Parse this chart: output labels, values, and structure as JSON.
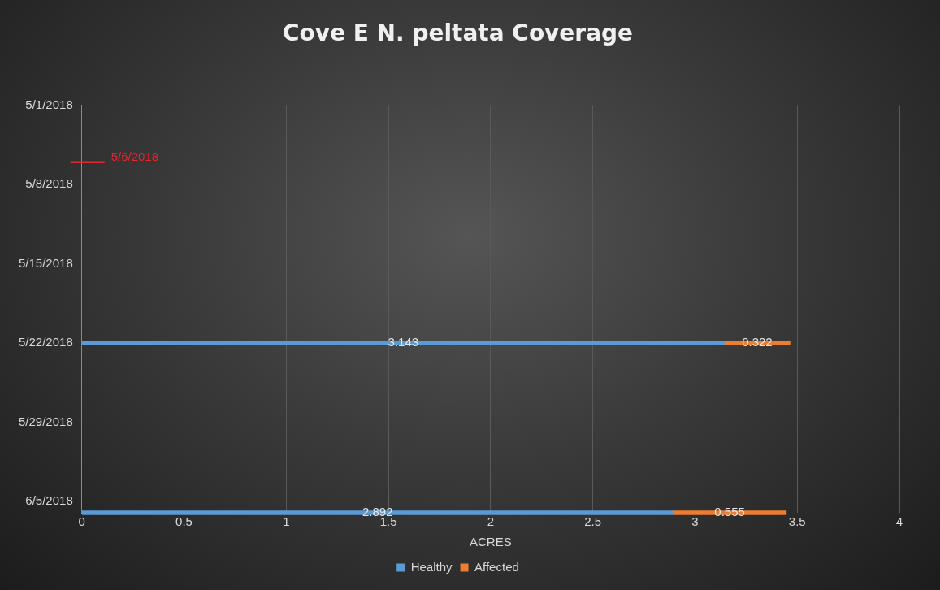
{
  "chart_data": {
    "type": "bar",
    "orientation": "horizontal",
    "stacked": true,
    "title": "Cove E N. peltata Coverage",
    "xlabel": "ACRES",
    "x": [
      "2018-05-22",
      "2018-06-06"
    ],
    "series": [
      {
        "name": "Healthy",
        "color": "#5b9bd5",
        "values": [
          3.143,
          2.892
        ]
      },
      {
        "name": "Affected",
        "color": "#ed7d31",
        "values": [
          0.322,
          0.555
        ]
      }
    ],
    "xlim": [
      0,
      4
    ],
    "xticks": [
      0,
      0.5,
      1,
      1.5,
      2,
      2.5,
      3,
      3.5,
      4
    ],
    "ylim": [
      "2018-06-06",
      "2018-05-01"
    ],
    "yticks": [
      {
        "value": "2018-05-01",
        "label": "5/1/2018"
      },
      {
        "value": "2018-05-08",
        "label": "5/8/2018"
      },
      {
        "value": "2018-05-15",
        "label": "5/15/2018"
      },
      {
        "value": "2018-05-22",
        "label": "5/22/2018"
      },
      {
        "value": "2018-05-29",
        "label": "5/29/2018"
      },
      {
        "value": "2018-06-05",
        "label": "6/5/2018"
      }
    ],
    "ref_lines": [
      {
        "axis": "y",
        "value": "2018-05-06",
        "label": "5/6/2018",
        "color": "#e0282e"
      }
    ],
    "data_labels": true,
    "grid": "x",
    "legend": "bottom"
  }
}
